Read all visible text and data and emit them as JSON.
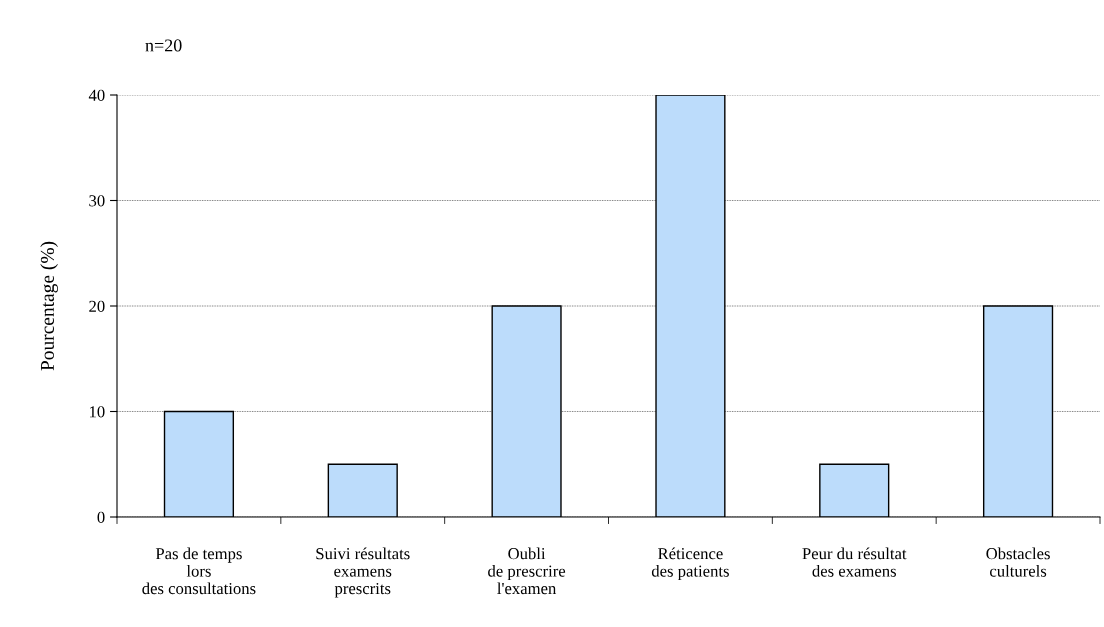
{
  "chart_data": {
    "type": "bar",
    "ylabel": "Pourcentage (%)",
    "annotations": [
      "n=20"
    ],
    "categories": [
      "Pas de temps\nlors\ndes consultations",
      "Suivi résultats\nexamens\nprescrits",
      "Oubli\nde prescrire\nl'examen",
      "Réticence\ndes patients",
      "Peur du résultat\ndes examens",
      "Obstacles\nculturels"
    ],
    "values": [
      10,
      5,
      20,
      40,
      5,
      20
    ],
    "color": "#bcdcfb",
    "ylim": [
      0,
      40
    ],
    "yticks": [
      0,
      10,
      20,
      30,
      40
    ],
    "grid": "y"
  }
}
